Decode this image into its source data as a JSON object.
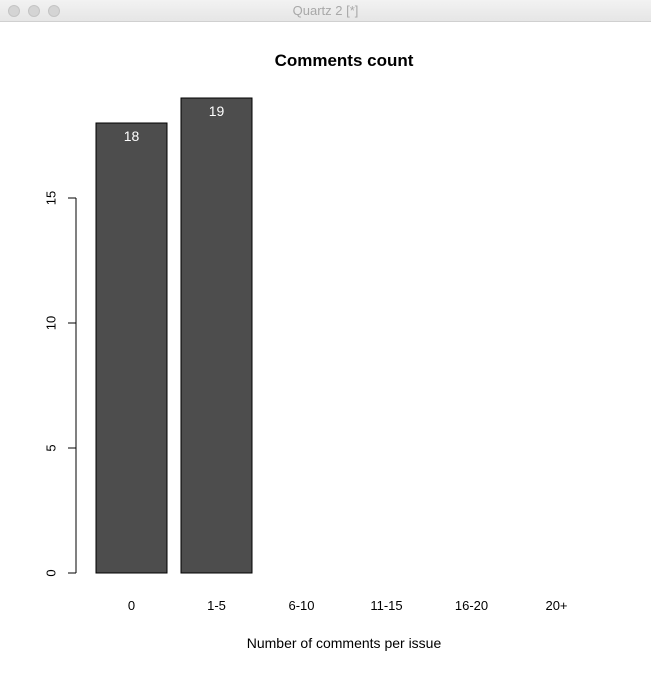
{
  "window": {
    "title": "Quartz 2 [*]"
  },
  "chart_data": {
    "type": "bar",
    "title": "Comments count",
    "xlabel": "Number of comments per issue",
    "ylabel": "",
    "categories": [
      "0",
      "1-5",
      "6-10",
      "11-15",
      "16-20",
      "20+"
    ],
    "values": [
      18,
      19,
      0,
      0,
      0,
      0
    ],
    "data_labels": [
      "18",
      "19",
      "",
      "",
      "",
      ""
    ],
    "yticks": [
      0,
      5,
      10,
      15
    ],
    "ylim": [
      0,
      19
    ],
    "grid": false,
    "bar_color": "#4d4d4d",
    "data_label_color": "#ffffff"
  }
}
